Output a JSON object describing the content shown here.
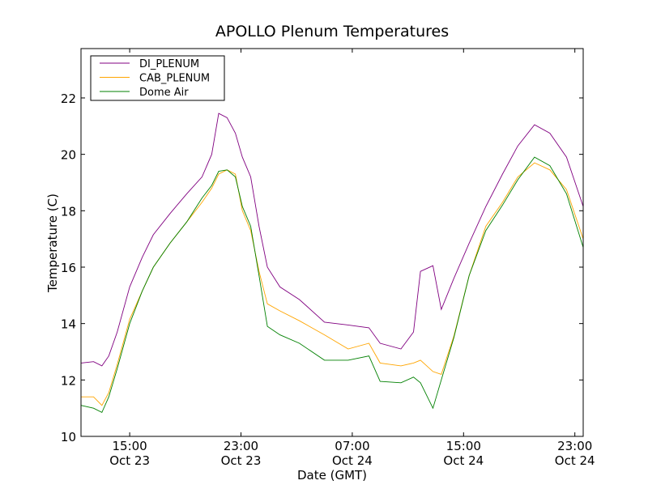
{
  "chart_data": {
    "type": "line",
    "title": "APOLLO Plenum Temperatures",
    "xlabel": "Date (GMT)",
    "ylabel": "Temperature (C)",
    "x_units": "hours since Oct 23 00:00 GMT",
    "xlim": [
      11.5,
      47.6
    ],
    "ylim": [
      10,
      23.75
    ],
    "grid": false,
    "legend_position": "top-left",
    "yticks": [
      10,
      12,
      14,
      16,
      18,
      20,
      22
    ],
    "xticks": [
      {
        "value": 15,
        "time": "15:00",
        "date": "Oct 23"
      },
      {
        "value": 23,
        "time": "23:00",
        "date": "Oct 23"
      },
      {
        "value": 31,
        "time": "07:00",
        "date": "Oct 24"
      },
      {
        "value": 39,
        "time": "15:00",
        "date": "Oct 24"
      },
      {
        "value": 47,
        "time": "23:00",
        "date": "Oct 24"
      }
    ],
    "x": [
      11.5,
      12.4,
      13.0,
      13.5,
      14.1,
      15.0,
      15.9,
      16.7,
      17.9,
      19.1,
      20.2,
      20.9,
      21.4,
      22.0,
      22.6,
      23.1,
      23.7,
      24.3,
      24.9,
      25.8,
      27.2,
      29.0,
      30.7,
      32.2,
      33.0,
      34.5,
      35.4,
      35.9,
      36.8,
      37.4,
      38.3,
      39.4,
      40.6,
      41.8,
      42.9,
      44.1,
      45.2,
      46.4,
      47.6
    ],
    "series": [
      {
        "name": "DI_PLENUM",
        "color": "#800080",
        "values": [
          12.6,
          12.65,
          12.5,
          12.85,
          13.7,
          15.3,
          16.35,
          17.15,
          17.9,
          18.6,
          19.2,
          20.0,
          21.45,
          21.3,
          20.75,
          19.9,
          19.2,
          17.45,
          16.0,
          15.3,
          14.85,
          14.05,
          13.95,
          13.85,
          13.3,
          13.1,
          13.7,
          15.85,
          16.05,
          14.5,
          15.6,
          16.85,
          18.15,
          19.3,
          20.3,
          21.05,
          20.75,
          19.9,
          18.15
        ]
      },
      {
        "name": "CAB_PLENUM",
        "color": "#ffa500",
        "values": [
          11.4,
          11.4,
          11.1,
          11.55,
          12.55,
          14.15,
          15.15,
          16.0,
          16.85,
          17.6,
          18.3,
          18.8,
          19.3,
          19.45,
          19.3,
          18.0,
          17.3,
          15.85,
          14.7,
          14.45,
          14.1,
          13.6,
          13.1,
          13.3,
          12.6,
          12.5,
          12.6,
          12.7,
          12.3,
          12.2,
          13.55,
          15.7,
          17.45,
          18.3,
          19.2,
          19.7,
          19.45,
          18.75,
          17.0
        ]
      },
      {
        "name": "Dome Air",
        "color": "#008000",
        "values": [
          11.1,
          11.0,
          10.85,
          11.4,
          12.4,
          14.0,
          15.15,
          16.0,
          16.85,
          17.6,
          18.45,
          18.9,
          19.4,
          19.45,
          19.2,
          18.15,
          17.45,
          15.7,
          13.9,
          13.6,
          13.3,
          12.7,
          12.7,
          12.85,
          11.95,
          11.9,
          12.1,
          11.9,
          11.0,
          12.0,
          13.5,
          15.7,
          17.3,
          18.2,
          19.1,
          19.9,
          19.6,
          18.6,
          16.7
        ]
      }
    ]
  }
}
